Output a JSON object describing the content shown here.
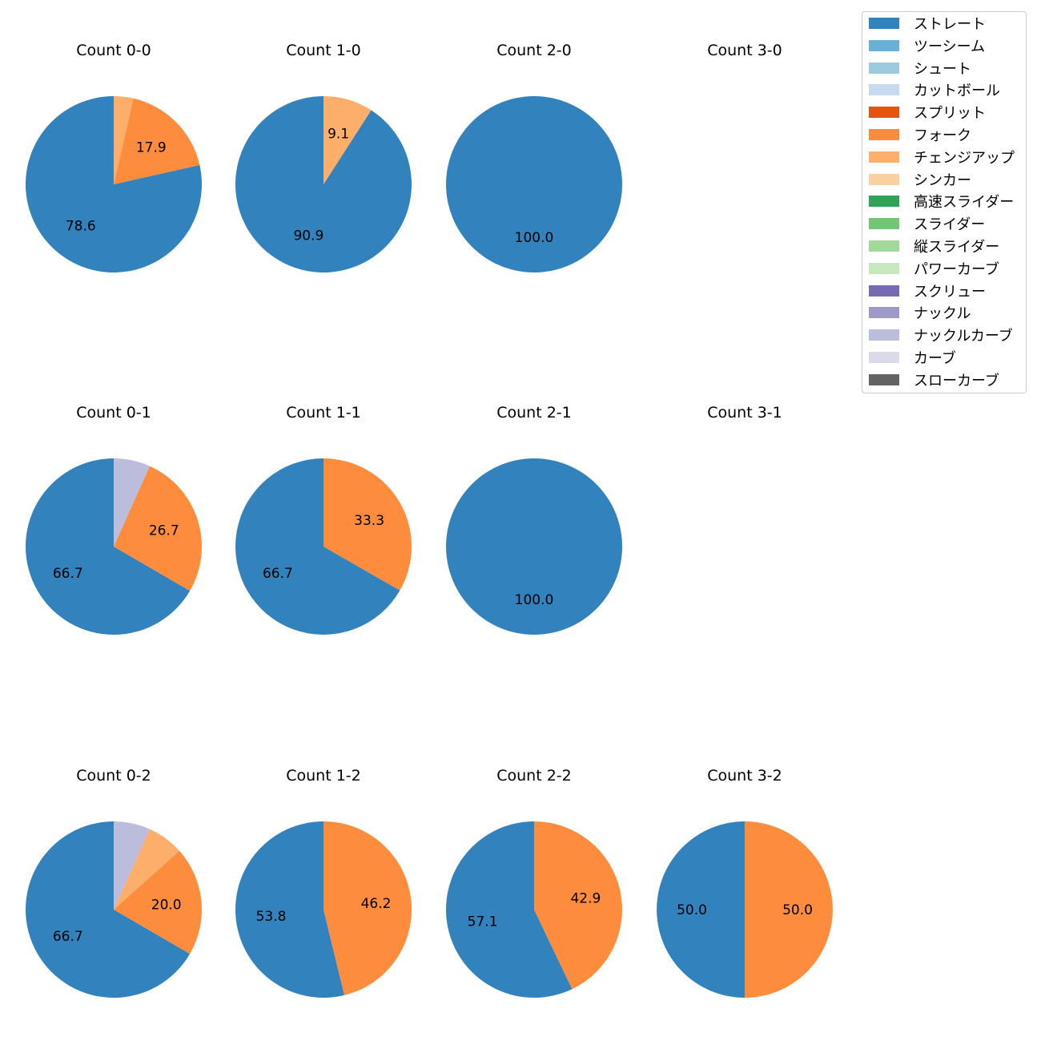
{
  "chart_data": {
    "type": "pie",
    "title": "",
    "legend": {
      "placement": "top-right",
      "entries": [
        {
          "name": "ストレート",
          "color": "#3182bd"
        },
        {
          "name": "ツーシーム",
          "color": "#6baed6"
        },
        {
          "name": "シュート",
          "color": "#9ecae1"
        },
        {
          "name": "カットボール",
          "color": "#c6dbef"
        },
        {
          "name": "スプリット",
          "color": "#e6550d"
        },
        {
          "name": "フォーク",
          "color": "#fd8d3c"
        },
        {
          "name": "チェンジアップ",
          "color": "#fdae6b"
        },
        {
          "name": "シンカー",
          "color": "#fdd0a2"
        },
        {
          "name": "高速スライダー",
          "color": "#31a354"
        },
        {
          "name": "スライダー",
          "color": "#74c476"
        },
        {
          "name": "縦スライダー",
          "color": "#a1d99b"
        },
        {
          "name": "パワーカーブ",
          "color": "#c7e9c0"
        },
        {
          "name": "スクリュー",
          "color": "#756bb1"
        },
        {
          "name": "ナックル",
          "color": "#9e9ac8"
        },
        {
          "name": "ナックルカーブ",
          "color": "#bcbddc"
        },
        {
          "name": "カーブ",
          "color": "#dadaeb"
        },
        {
          "name": "スローカーブ",
          "color": "#636363"
        }
      ]
    },
    "panels": [
      {
        "title": "Count 0-0",
        "slices": [
          {
            "pitch": "ストレート",
            "value": 78.6,
            "label": "78.6"
          },
          {
            "pitch": "フォーク",
            "value": 17.9,
            "label": "17.9"
          },
          {
            "pitch": "チェンジアップ",
            "value": 3.6,
            "label": ""
          }
        ]
      },
      {
        "title": "Count 1-0",
        "slices": [
          {
            "pitch": "ストレート",
            "value": 90.9,
            "label": "90.9"
          },
          {
            "pitch": "チェンジアップ",
            "value": 9.1,
            "label": "9.1"
          }
        ]
      },
      {
        "title": "Count 2-0",
        "slices": [
          {
            "pitch": "ストレート",
            "value": 100.0,
            "label": "100.0"
          }
        ]
      },
      {
        "title": "Count 3-0",
        "slices": []
      },
      {
        "title": "Count 0-1",
        "slices": [
          {
            "pitch": "ストレート",
            "value": 66.7,
            "label": "66.7"
          },
          {
            "pitch": "フォーク",
            "value": 26.7,
            "label": "26.7"
          },
          {
            "pitch": "ナックルカーブ",
            "value": 6.7,
            "label": ""
          }
        ]
      },
      {
        "title": "Count 1-1",
        "slices": [
          {
            "pitch": "ストレート",
            "value": 66.7,
            "label": "66.7"
          },
          {
            "pitch": "フォーク",
            "value": 33.3,
            "label": "33.3"
          }
        ]
      },
      {
        "title": "Count 2-1",
        "slices": [
          {
            "pitch": "ストレート",
            "value": 100.0,
            "label": "100.0"
          }
        ]
      },
      {
        "title": "Count 3-1",
        "slices": []
      },
      {
        "title": "Count 0-2",
        "slices": [
          {
            "pitch": "ストレート",
            "value": 66.7,
            "label": "66.7"
          },
          {
            "pitch": "フォーク",
            "value": 20.0,
            "label": "20.0"
          },
          {
            "pitch": "チェンジアップ",
            "value": 6.7,
            "label": ""
          },
          {
            "pitch": "ナックルカーブ",
            "value": 6.7,
            "label": ""
          }
        ]
      },
      {
        "title": "Count 1-2",
        "slices": [
          {
            "pitch": "ストレート",
            "value": 53.8,
            "label": "53.8"
          },
          {
            "pitch": "フォーク",
            "value": 46.2,
            "label": "46.2"
          }
        ]
      },
      {
        "title": "Count 2-2",
        "slices": [
          {
            "pitch": "ストレート",
            "value": 57.1,
            "label": "57.1"
          },
          {
            "pitch": "フォーク",
            "value": 42.9,
            "label": "42.9"
          }
        ]
      },
      {
        "title": "Count 3-2",
        "slices": [
          {
            "pitch": "ストレート",
            "value": 50.0,
            "label": "50.0"
          },
          {
            "pitch": "フォーク",
            "value": 50.0,
            "label": "50.0"
          }
        ]
      }
    ]
  }
}
